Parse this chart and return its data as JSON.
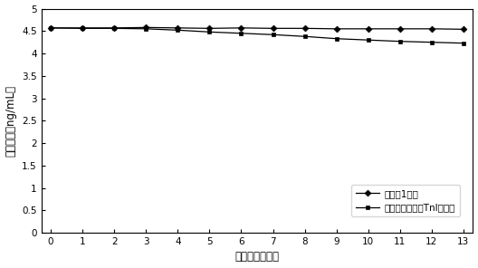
{
  "x": [
    0,
    1,
    2,
    3,
    4,
    5,
    6,
    7,
    8,
    9,
    10,
    11,
    12,
    13
  ],
  "series1_y": [
    4.57,
    4.57,
    4.57,
    4.58,
    4.57,
    4.56,
    4.57,
    4.56,
    4.56,
    4.55,
    4.55,
    4.55,
    4.55,
    4.54
  ],
  "series2_y": [
    4.57,
    4.56,
    4.56,
    4.55,
    4.52,
    4.48,
    4.45,
    4.42,
    4.38,
    4.33,
    4.3,
    4.27,
    4.25,
    4.23
  ],
  "series1_label": "实施例1试剂",
  "series2_label": "市售肌钓蜗白（TnI）试剂",
  "xlabel": "放置时间（月）",
  "ylabel": "检测结果（ng/mL）",
  "ylim": [
    0,
    5
  ],
  "xlim": [
    -0.3,
    13.3
  ],
  "yticks": [
    0,
    0.5,
    1,
    1.5,
    2,
    2.5,
    3,
    3.5,
    4,
    4.5,
    5
  ],
  "xticks": [
    0,
    1,
    2,
    3,
    4,
    5,
    6,
    7,
    8,
    9,
    10,
    11,
    12,
    13
  ],
  "line_color": "#000000",
  "background_color": "#ffffff",
  "marker1": "D",
  "marker2": "s",
  "markersize": 3.5,
  "linewidth": 0.9,
  "legend_frameon": true
}
